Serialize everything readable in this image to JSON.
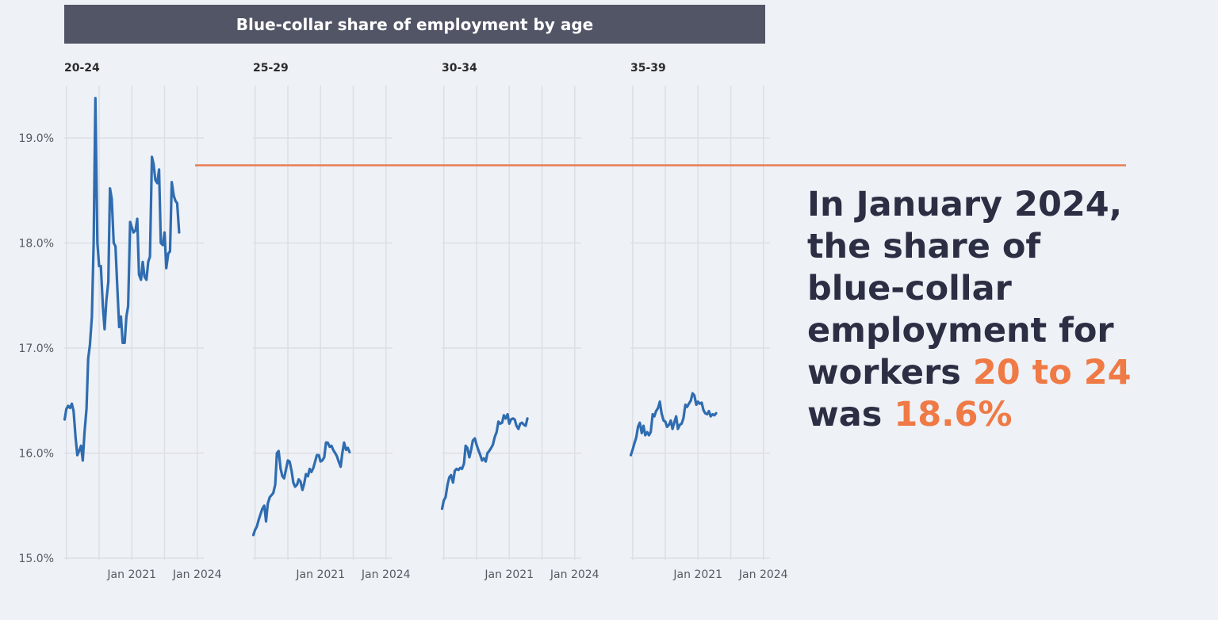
{
  "chart_data": {
    "type": "line",
    "title": "Blue-collar share of employment by age",
    "y_axis": {
      "ticks": [
        "15.0%",
        "16.0%",
        "17.0%",
        "18.0%",
        "19.0%"
      ],
      "tick_values": [
        15.0,
        16.0,
        17.0,
        18.0,
        19.0
      ],
      "range": [
        15.0,
        19.5
      ]
    },
    "x_axis": {
      "tick_labels": [
        "Jan 2021",
        "Jan 2024"
      ],
      "tick_values": [
        2021.0,
        2024.0
      ],
      "range": [
        2017.9,
        2024.3
      ]
    },
    "grid": true,
    "reference_line": {
      "value": 18.74,
      "color": "#ea7d53"
    },
    "series_color": "#2f6cb0",
    "panels": [
      {
        "name": "20-24",
        "points": [
          [
            2017.92,
            16.32
          ],
          [
            2018.0,
            16.42
          ],
          [
            2018.08,
            16.45
          ],
          [
            2018.17,
            16.43
          ],
          [
            2018.25,
            16.47
          ],
          [
            2018.33,
            16.4
          ],
          [
            2018.42,
            16.15
          ],
          [
            2018.5,
            15.98
          ],
          [
            2018.58,
            16.02
          ],
          [
            2018.67,
            16.07
          ],
          [
            2018.75,
            15.93
          ],
          [
            2018.83,
            16.2
          ],
          [
            2018.92,
            16.42
          ],
          [
            2019.0,
            16.9
          ],
          [
            2019.08,
            17.03
          ],
          [
            2019.17,
            17.3
          ],
          [
            2019.25,
            18.0
          ],
          [
            2019.33,
            19.38
          ],
          [
            2019.42,
            18.0
          ],
          [
            2019.5,
            17.78
          ],
          [
            2019.58,
            17.78
          ],
          [
            2019.67,
            17.4
          ],
          [
            2019.75,
            17.18
          ],
          [
            2019.83,
            17.45
          ],
          [
            2019.92,
            17.63
          ],
          [
            2020.0,
            18.52
          ],
          [
            2020.08,
            18.42
          ],
          [
            2020.17,
            18.0
          ],
          [
            2020.25,
            17.97
          ],
          [
            2020.33,
            17.6
          ],
          [
            2020.42,
            17.2
          ],
          [
            2020.5,
            17.3
          ],
          [
            2020.58,
            17.05
          ],
          [
            2020.67,
            17.05
          ],
          [
            2020.75,
            17.3
          ],
          [
            2020.83,
            17.4
          ],
          [
            2020.92,
            18.2
          ],
          [
            2021.0,
            18.15
          ],
          [
            2021.08,
            18.1
          ],
          [
            2021.17,
            18.12
          ],
          [
            2021.25,
            18.23
          ],
          [
            2021.33,
            17.7
          ],
          [
            2021.42,
            17.65
          ],
          [
            2021.5,
            17.82
          ],
          [
            2021.58,
            17.68
          ],
          [
            2021.67,
            17.65
          ],
          [
            2021.75,
            17.82
          ],
          [
            2021.83,
            17.87
          ],
          [
            2021.92,
            18.82
          ],
          [
            2022.0,
            18.75
          ],
          [
            2022.08,
            18.6
          ],
          [
            2022.17,
            18.57
          ],
          [
            2022.25,
            18.7
          ],
          [
            2022.33,
            18.0
          ],
          [
            2022.42,
            17.98
          ],
          [
            2022.5,
            18.1
          ],
          [
            2022.58,
            17.76
          ],
          [
            2022.67,
            17.9
          ],
          [
            2022.75,
            17.92
          ],
          [
            2022.83,
            18.58
          ],
          [
            2022.92,
            18.45
          ],
          [
            2023.0,
            18.4
          ],
          [
            2023.08,
            18.38
          ],
          [
            2023.17,
            18.1
          ]
        ]
      },
      {
        "name": "25-29",
        "points": [
          [
            2017.92,
            15.22
          ],
          [
            2018.0,
            15.27
          ],
          [
            2018.08,
            15.3
          ],
          [
            2018.17,
            15.37
          ],
          [
            2018.25,
            15.42
          ],
          [
            2018.33,
            15.47
          ],
          [
            2018.42,
            15.5
          ],
          [
            2018.5,
            15.35
          ],
          [
            2018.58,
            15.52
          ],
          [
            2018.67,
            15.58
          ],
          [
            2018.75,
            15.6
          ],
          [
            2018.83,
            15.62
          ],
          [
            2018.92,
            15.7
          ],
          [
            2019.0,
            16.0
          ],
          [
            2019.08,
            16.02
          ],
          [
            2019.17,
            15.85
          ],
          [
            2019.25,
            15.78
          ],
          [
            2019.33,
            15.76
          ],
          [
            2019.42,
            15.85
          ],
          [
            2019.5,
            15.93
          ],
          [
            2019.58,
            15.92
          ],
          [
            2019.67,
            15.83
          ],
          [
            2019.75,
            15.72
          ],
          [
            2019.83,
            15.68
          ],
          [
            2019.92,
            15.7
          ],
          [
            2020.0,
            15.75
          ],
          [
            2020.08,
            15.73
          ],
          [
            2020.17,
            15.65
          ],
          [
            2020.25,
            15.71
          ],
          [
            2020.33,
            15.8
          ],
          [
            2020.42,
            15.78
          ],
          [
            2020.5,
            15.85
          ],
          [
            2020.58,
            15.82
          ],
          [
            2020.67,
            15.86
          ],
          [
            2020.75,
            15.92
          ],
          [
            2020.83,
            15.98
          ],
          [
            2020.92,
            15.98
          ],
          [
            2021.0,
            15.92
          ],
          [
            2021.08,
            15.93
          ],
          [
            2021.17,
            15.96
          ],
          [
            2021.25,
            16.1
          ],
          [
            2021.33,
            16.1
          ],
          [
            2021.42,
            16.06
          ],
          [
            2021.5,
            16.07
          ],
          [
            2021.58,
            16.03
          ],
          [
            2021.67,
            16.0
          ],
          [
            2021.75,
            15.97
          ],
          [
            2021.83,
            15.92
          ],
          [
            2021.92,
            15.87
          ],
          [
            2022.0,
            16.0
          ],
          [
            2022.08,
            16.1
          ],
          [
            2022.17,
            16.03
          ],
          [
            2022.25,
            16.05
          ],
          [
            2022.33,
            16.01
          ]
        ]
      },
      {
        "name": "30-34",
        "points": [
          [
            2017.92,
            15.47
          ],
          [
            2018.0,
            15.55
          ],
          [
            2018.08,
            15.58
          ],
          [
            2018.17,
            15.7
          ],
          [
            2018.25,
            15.77
          ],
          [
            2018.33,
            15.79
          ],
          [
            2018.42,
            15.72
          ],
          [
            2018.5,
            15.83
          ],
          [
            2018.58,
            15.85
          ],
          [
            2018.67,
            15.84
          ],
          [
            2018.75,
            15.86
          ],
          [
            2018.83,
            15.85
          ],
          [
            2018.92,
            15.9
          ],
          [
            2019.0,
            16.07
          ],
          [
            2019.08,
            16.05
          ],
          [
            2019.17,
            15.96
          ],
          [
            2019.25,
            16.03
          ],
          [
            2019.33,
            16.12
          ],
          [
            2019.42,
            16.14
          ],
          [
            2019.5,
            16.08
          ],
          [
            2019.58,
            16.03
          ],
          [
            2019.67,
            15.98
          ],
          [
            2019.75,
            15.93
          ],
          [
            2019.83,
            15.95
          ],
          [
            2019.92,
            15.92
          ],
          [
            2020.0,
            16.0
          ],
          [
            2020.08,
            16.02
          ],
          [
            2020.17,
            16.05
          ],
          [
            2020.25,
            16.08
          ],
          [
            2020.33,
            16.15
          ],
          [
            2020.42,
            16.2
          ],
          [
            2020.5,
            16.3
          ],
          [
            2020.58,
            16.28
          ],
          [
            2020.67,
            16.29
          ],
          [
            2020.75,
            16.36
          ],
          [
            2020.83,
            16.33
          ],
          [
            2020.92,
            16.37
          ],
          [
            2021.0,
            16.28
          ],
          [
            2021.08,
            16.32
          ],
          [
            2021.17,
            16.33
          ],
          [
            2021.25,
            16.32
          ],
          [
            2021.33,
            16.26
          ],
          [
            2021.42,
            16.23
          ],
          [
            2021.5,
            16.28
          ],
          [
            2021.58,
            16.29
          ],
          [
            2021.67,
            16.27
          ],
          [
            2021.75,
            16.26
          ],
          [
            2021.83,
            16.33
          ]
        ]
      },
      {
        "name": "35-39",
        "points": [
          [
            2017.92,
            15.98
          ],
          [
            2018.0,
            16.03
          ],
          [
            2018.08,
            16.09
          ],
          [
            2018.17,
            16.15
          ],
          [
            2018.25,
            16.25
          ],
          [
            2018.33,
            16.29
          ],
          [
            2018.42,
            16.19
          ],
          [
            2018.5,
            16.26
          ],
          [
            2018.58,
            16.17
          ],
          [
            2018.67,
            16.2
          ],
          [
            2018.75,
            16.17
          ],
          [
            2018.83,
            16.2
          ],
          [
            2018.92,
            16.37
          ],
          [
            2019.0,
            16.35
          ],
          [
            2019.08,
            16.4
          ],
          [
            2019.17,
            16.43
          ],
          [
            2019.25,
            16.49
          ],
          [
            2019.33,
            16.38
          ],
          [
            2019.42,
            16.31
          ],
          [
            2019.5,
            16.3
          ],
          [
            2019.58,
            16.25
          ],
          [
            2019.67,
            16.27
          ],
          [
            2019.75,
            16.31
          ],
          [
            2019.83,
            16.23
          ],
          [
            2019.92,
            16.3
          ],
          [
            2020.0,
            16.35
          ],
          [
            2020.08,
            16.23
          ],
          [
            2020.17,
            16.27
          ],
          [
            2020.25,
            16.28
          ],
          [
            2020.33,
            16.33
          ],
          [
            2020.42,
            16.46
          ],
          [
            2020.5,
            16.44
          ],
          [
            2020.58,
            16.47
          ],
          [
            2020.67,
            16.5
          ],
          [
            2020.75,
            16.57
          ],
          [
            2020.83,
            16.55
          ],
          [
            2020.92,
            16.46
          ],
          [
            2021.0,
            16.49
          ],
          [
            2021.08,
            16.47
          ],
          [
            2021.17,
            16.48
          ],
          [
            2021.25,
            16.41
          ],
          [
            2021.33,
            16.38
          ],
          [
            2021.42,
            16.37
          ],
          [
            2021.5,
            16.4
          ],
          [
            2021.58,
            16.35
          ],
          [
            2021.67,
            16.37
          ],
          [
            2021.75,
            16.36
          ],
          [
            2021.83,
            16.38
          ]
        ]
      }
    ]
  },
  "callout": {
    "line1": "In January 2024, the share of blue-collar employment for workers",
    "highlight_age": "20 to 24",
    "line2": "was",
    "highlight_value": "18.6%",
    "highlight_color": "#ef7a45"
  }
}
